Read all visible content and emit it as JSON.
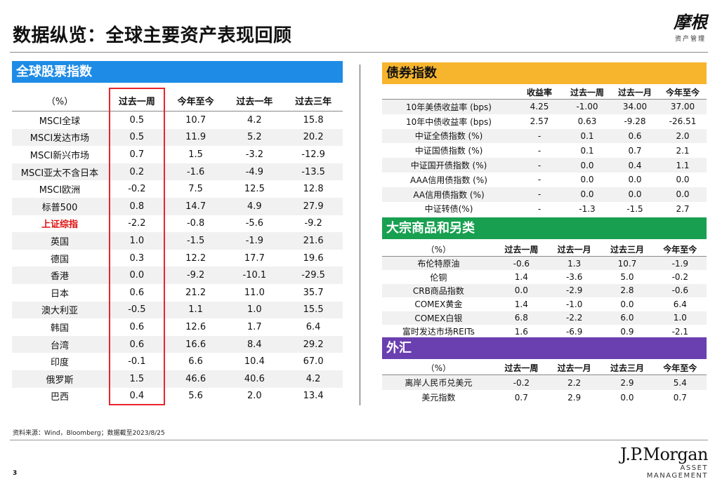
{
  "header": {
    "title": "数据纵览：全球主要资产表现回顾",
    "logo_cn": "摩根",
    "logo_sub": "资产管理"
  },
  "equity": {
    "banner": "全球股票指数",
    "columns": [
      "（%）",
      "过去一周",
      "今年至今",
      "过去一年",
      "过去三年"
    ],
    "rows": [
      {
        "name": "MSCI全球",
        "v": [
          "0.5",
          "10.7",
          "4.2",
          "15.8"
        ]
      },
      {
        "name": "MSCI发达市场",
        "v": [
          "0.5",
          "11.9",
          "5.2",
          "20.2"
        ]
      },
      {
        "name": "MSCI新兴市场",
        "v": [
          "0.7",
          "1.5",
          "-3.2",
          "-12.9"
        ]
      },
      {
        "name": "MSCI亚太不含日本",
        "v": [
          "0.2",
          "-1.6",
          "-4.9",
          "-13.5"
        ]
      },
      {
        "name": "MSCI欧洲",
        "v": [
          "-0.2",
          "7.5",
          "12.5",
          "12.8"
        ]
      },
      {
        "name": "标普500",
        "v": [
          "0.8",
          "14.7",
          "4.9",
          "27.9"
        ]
      },
      {
        "name": "上证综指",
        "v": [
          "-2.2",
          "-0.8",
          "-5.6",
          "-9.2"
        ]
      },
      {
        "name": "英国",
        "v": [
          "1.0",
          "-1.5",
          "-1.9",
          "21.6"
        ]
      },
      {
        "name": "德国",
        "v": [
          "0.3",
          "12.2",
          "17.7",
          "19.6"
        ]
      },
      {
        "name": "香港",
        "v": [
          "0.0",
          "-9.2",
          "-10.1",
          "-29.5"
        ]
      },
      {
        "name": "日本",
        "v": [
          "0.6",
          "21.2",
          "11.0",
          "35.7"
        ]
      },
      {
        "name": "澳大利亚",
        "v": [
          "-0.5",
          "1.1",
          "1.0",
          "15.5"
        ]
      },
      {
        "name": "韩国",
        "v": [
          "0.6",
          "12.6",
          "1.7",
          "6.4"
        ]
      },
      {
        "name": "台湾",
        "v": [
          "0.6",
          "16.6",
          "8.4",
          "29.2"
        ]
      },
      {
        "name": "印度",
        "v": [
          "-0.1",
          "6.6",
          "10.4",
          "67.0"
        ]
      },
      {
        "name": "俄罗斯",
        "v": [
          "1.5",
          "46.6",
          "40.6",
          "4.2"
        ]
      },
      {
        "name": "巴西",
        "v": [
          "0.4",
          "5.6",
          "2.0",
          "13.4"
        ]
      }
    ],
    "highlight_color": "#e01010"
  },
  "bonds": {
    "banner": "债券指数",
    "columns": [
      "",
      "收益率",
      "过去一周",
      "过去一月",
      "今年至今"
    ],
    "rows": [
      {
        "name": "10年美债收益率 (bps)",
        "v": [
          "4.25",
          "-1.00",
          "34.00",
          "37.00"
        ]
      },
      {
        "name": "10年中债收益率 (bps)",
        "v": [
          "2.57",
          "0.63",
          "-9.28",
          "-26.51"
        ]
      },
      {
        "name": "中证全债指数 (%)",
        "v": [
          "-",
          "0.1",
          "0.6",
          "2.0"
        ]
      },
      {
        "name": "中证国债指数 (%)",
        "v": [
          "-",
          "0.1",
          "0.7",
          "2.1"
        ]
      },
      {
        "name": "中证国开债指数 (%)",
        "v": [
          "-",
          "0.0",
          "0.4",
          "1.1"
        ]
      },
      {
        "name": "AAA信用债指数 (%)",
        "v": [
          "-",
          "0.0",
          "0.0",
          "0.0"
        ]
      },
      {
        "name": "AA信用债指数 (%)",
        "v": [
          "-",
          "0.0",
          "0.0",
          "0.0"
        ]
      },
      {
        "name": "中证转债(%)",
        "v": [
          "-",
          "-1.3",
          "-1.5",
          "2.7"
        ]
      }
    ]
  },
  "commodities": {
    "banner": "大宗商品和另类",
    "columns": [
      "（%）",
      "过去一周",
      "过去一月",
      "过去三月",
      "今年至今"
    ],
    "rows": [
      {
        "name": "布伦特原油",
        "v": [
          "-0.6",
          "1.3",
          "10.7",
          "-1.9"
        ]
      },
      {
        "name": "伦铜",
        "v": [
          "1.4",
          "-3.6",
          "5.0",
          "-0.2"
        ]
      },
      {
        "name": "CRB商品指数",
        "v": [
          "0.0",
          "-2.9",
          "2.8",
          "-0.6"
        ]
      },
      {
        "name": "COMEX黄金",
        "v": [
          "1.4",
          "-1.0",
          "0.0",
          "6.4"
        ]
      },
      {
        "name": "COMEX白银",
        "v": [
          "6.8",
          "-2.2",
          "6.0",
          "1.0"
        ]
      },
      {
        "name": "富时发达市场REITs",
        "v": [
          "1.6",
          "-6.9",
          "0.9",
          "-2.1"
        ]
      }
    ]
  },
  "fx": {
    "banner": "外汇",
    "columns": [
      "（%）",
      "过去一周",
      "过去一月",
      "过去三月",
      "今年至今"
    ],
    "rows": [
      {
        "name": "离岸人民币兑美元",
        "v": [
          "-0.2",
          "2.2",
          "2.9",
          "5.4"
        ]
      },
      {
        "name": "美元指数",
        "v": [
          "0.7",
          "2.9",
          "0.0",
          "0.7"
        ]
      }
    ]
  },
  "footer": {
    "source": "资料来源：Wind，Bloomberg；数据截至2023/8/25",
    "page": "3",
    "brand": "J.P.Morgan",
    "brand_sub": "ASSET MANAGEMENT"
  },
  "colors": {
    "equity_banner": "#1e8ce6",
    "bond_banner": "#f7b52e",
    "commodity_banner": "#18a050",
    "fx_banner": "#6a3fb0",
    "highlight_box": "#e8242c"
  }
}
